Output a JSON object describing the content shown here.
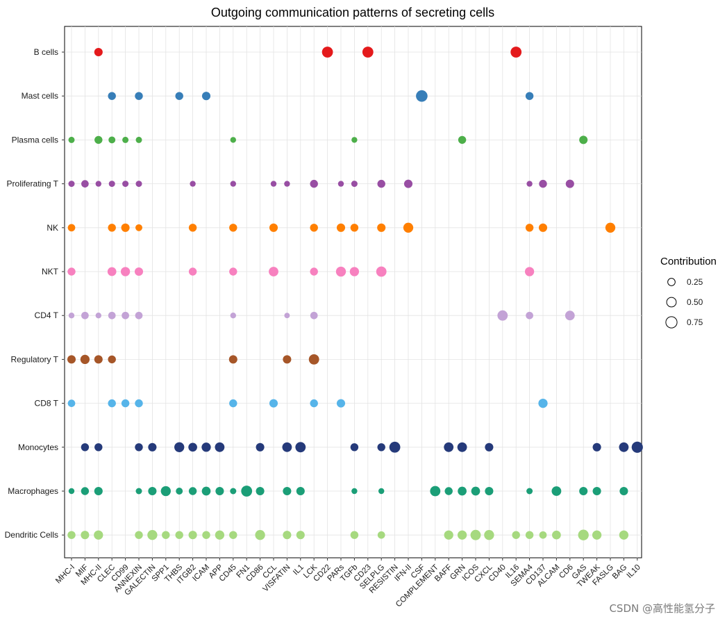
{
  "chart_data": {
    "type": "dot",
    "title": "Outgoing communication patterns of secreting cells",
    "xlabel": "",
    "ylabel": "",
    "x_categories": [
      "MHC-I",
      "MIF",
      "MHC-II",
      "CLEC",
      "CD99",
      "ANNEXIN",
      "GALECTIN",
      "SPP1",
      "THBS",
      "ITGB2",
      "ICAM",
      "APP",
      "CD45",
      "FN1",
      "CD86",
      "CCL",
      "VISFATIN",
      "IL1",
      "LCK",
      "CD22",
      "PARs",
      "TGFb",
      "CD23",
      "SELPLG",
      "RESISTIN",
      "IFN-II",
      "CSF",
      "COMPLEMENT",
      "BAFF",
      "GRN",
      "ICOS",
      "CXCL",
      "CD40",
      "IL16",
      "SEMA4",
      "CD137",
      "ALCAM",
      "CD6",
      "GAS",
      "TWEAK",
      "FASLG",
      "BAG",
      "IL10"
    ],
    "y_categories": [
      "B cells",
      "Mast cells",
      "Plasma cells",
      "Proliferating T",
      "NK",
      "NKT",
      "CD4 T",
      "Regulatory T",
      "CD8 T",
      "Monocytes",
      "Macrophages",
      "Dendritic Cells"
    ],
    "legend": {
      "title": "Contribution",
      "position": "right",
      "items": [
        {
          "label": "0.25",
          "value": 0.25
        },
        {
          "label": "0.50",
          "value": 0.5
        },
        {
          "label": "0.75",
          "value": 0.75
        }
      ]
    },
    "series": [
      {
        "name": "B cells",
        "color": "#E41A1C",
        "points": [
          {
            "x": "MHC-II",
            "contribution": 0.35
          },
          {
            "x": "CD22",
            "contribution": 0.7
          },
          {
            "x": "CD23",
            "contribution": 0.7
          },
          {
            "x": "IL16",
            "contribution": 0.7
          }
        ]
      },
      {
        "name": "Mast cells",
        "color": "#377EB8",
        "points": [
          {
            "x": "CLEC",
            "contribution": 0.3
          },
          {
            "x": "ANNEXIN",
            "contribution": 0.3
          },
          {
            "x": "THBS",
            "contribution": 0.3
          },
          {
            "x": "ICAM",
            "contribution": 0.35
          },
          {
            "x": "CSF",
            "contribution": 0.8
          },
          {
            "x": "SEMA4",
            "contribution": 0.3
          }
        ]
      },
      {
        "name": "Plasma cells",
        "color": "#4DAF4A",
        "points": [
          {
            "x": "MHC-I",
            "contribution": 0.15
          },
          {
            "x": "MHC-II",
            "contribution": 0.3
          },
          {
            "x": "CLEC",
            "contribution": 0.2
          },
          {
            "x": "CD99",
            "contribution": 0.15
          },
          {
            "x": "ANNEXIN",
            "contribution": 0.15
          },
          {
            "x": "CD45",
            "contribution": 0.12
          },
          {
            "x": "TGFb",
            "contribution": 0.12
          },
          {
            "x": "GRN",
            "contribution": 0.3
          },
          {
            "x": "GAS",
            "contribution": 0.35
          }
        ]
      },
      {
        "name": "Proliferating T",
        "color": "#984EA3",
        "points": [
          {
            "x": "MHC-I",
            "contribution": 0.15
          },
          {
            "x": "MIF",
            "contribution": 0.25
          },
          {
            "x": "MHC-II",
            "contribution": 0.12
          },
          {
            "x": "CLEC",
            "contribution": 0.15
          },
          {
            "x": "CD99",
            "contribution": 0.15
          },
          {
            "x": "ANNEXIN",
            "contribution": 0.15
          },
          {
            "x": "ITGB2",
            "contribution": 0.12
          },
          {
            "x": "CD45",
            "contribution": 0.12
          },
          {
            "x": "CCL",
            "contribution": 0.12
          },
          {
            "x": "VISFATIN",
            "contribution": 0.12
          },
          {
            "x": "LCK",
            "contribution": 0.3
          },
          {
            "x": "PARs",
            "contribution": 0.12
          },
          {
            "x": "TGFb",
            "contribution": 0.15
          },
          {
            "x": "SELPLG",
            "contribution": 0.3
          },
          {
            "x": "IFN-II",
            "contribution": 0.35
          },
          {
            "x": "SEMA4",
            "contribution": 0.12
          },
          {
            "x": "CD137",
            "contribution": 0.3
          },
          {
            "x": "CD6",
            "contribution": 0.35
          }
        ]
      },
      {
        "name": "NK",
        "color": "#FF7F00",
        "points": [
          {
            "x": "MHC-I",
            "contribution": 0.25
          },
          {
            "x": "CLEC",
            "contribution": 0.3
          },
          {
            "x": "CD99",
            "contribution": 0.35
          },
          {
            "x": "ANNEXIN",
            "contribution": 0.2
          },
          {
            "x": "ITGB2",
            "contribution": 0.3
          },
          {
            "x": "CD45",
            "contribution": 0.3
          },
          {
            "x": "CCL",
            "contribution": 0.35
          },
          {
            "x": "LCK",
            "contribution": 0.3
          },
          {
            "x": "PARs",
            "contribution": 0.35
          },
          {
            "x": "TGFb",
            "contribution": 0.3
          },
          {
            "x": "SELPLG",
            "contribution": 0.35
          },
          {
            "x": "IFN-II",
            "contribution": 0.55
          },
          {
            "x": "SEMA4",
            "contribution": 0.3
          },
          {
            "x": "CD137",
            "contribution": 0.35
          },
          {
            "x": "FASLG",
            "contribution": 0.55
          }
        ]
      },
      {
        "name": "NKT",
        "color": "#F781BF",
        "points": [
          {
            "x": "MHC-I",
            "contribution": 0.3
          },
          {
            "x": "CLEC",
            "contribution": 0.4
          },
          {
            "x": "CD99",
            "contribution": 0.45
          },
          {
            "x": "ANNEXIN",
            "contribution": 0.35
          },
          {
            "x": "ITGB2",
            "contribution": 0.3
          },
          {
            "x": "CD45",
            "contribution": 0.3
          },
          {
            "x": "CCL",
            "contribution": 0.5
          },
          {
            "x": "LCK",
            "contribution": 0.3
          },
          {
            "x": "PARs",
            "contribution": 0.55
          },
          {
            "x": "TGFb",
            "contribution": 0.45
          },
          {
            "x": "SELPLG",
            "contribution": 0.6
          },
          {
            "x": "SEMA4",
            "contribution": 0.45
          }
        ]
      },
      {
        "name": "CD4 T",
        "color": "#C3A3D6",
        "points": [
          {
            "x": "MHC-I",
            "contribution": 0.12
          },
          {
            "x": "MIF",
            "contribution": 0.25
          },
          {
            "x": "MHC-II",
            "contribution": 0.12
          },
          {
            "x": "CLEC",
            "contribution": 0.25
          },
          {
            "x": "CD99",
            "contribution": 0.25
          },
          {
            "x": "ANNEXIN",
            "contribution": 0.25
          },
          {
            "x": "CD45",
            "contribution": 0.12
          },
          {
            "x": "VISFATIN",
            "contribution": 0.1
          },
          {
            "x": "LCK",
            "contribution": 0.25
          },
          {
            "x": "CD40",
            "contribution": 0.6
          },
          {
            "x": "SEMA4",
            "contribution": 0.25
          },
          {
            "x": "CD6",
            "contribution": 0.5
          }
        ]
      },
      {
        "name": "Regulatory T",
        "color": "#A65628",
        "points": [
          {
            "x": "MHC-I",
            "contribution": 0.35
          },
          {
            "x": "MIF",
            "contribution": 0.45
          },
          {
            "x": "MHC-II",
            "contribution": 0.35
          },
          {
            "x": "CLEC",
            "contribution": 0.3
          },
          {
            "x": "CD45",
            "contribution": 0.35
          },
          {
            "x": "VISFATIN",
            "contribution": 0.35
          },
          {
            "x": "LCK",
            "contribution": 0.6
          }
        ]
      },
      {
        "name": "CD8 T",
        "color": "#56B4E9",
        "points": [
          {
            "x": "MHC-I",
            "contribution": 0.25
          },
          {
            "x": "CLEC",
            "contribution": 0.3
          },
          {
            "x": "CD99",
            "contribution": 0.3
          },
          {
            "x": "ANNEXIN",
            "contribution": 0.3
          },
          {
            "x": "CD45",
            "contribution": 0.3
          },
          {
            "x": "CCL",
            "contribution": 0.35
          },
          {
            "x": "LCK",
            "contribution": 0.3
          },
          {
            "x": "PARs",
            "contribution": 0.35
          },
          {
            "x": "CD137",
            "contribution": 0.45
          }
        ]
      },
      {
        "name": "Monocytes",
        "color": "#253A7A",
        "points": [
          {
            "x": "MIF",
            "contribution": 0.3
          },
          {
            "x": "MHC-II",
            "contribution": 0.3
          },
          {
            "x": "ANNEXIN",
            "contribution": 0.3
          },
          {
            "x": "GALECTIN",
            "contribution": 0.35
          },
          {
            "x": "THBS",
            "contribution": 0.55
          },
          {
            "x": "ITGB2",
            "contribution": 0.4
          },
          {
            "x": "ICAM",
            "contribution": 0.45
          },
          {
            "x": "APP",
            "contribution": 0.5
          },
          {
            "x": "CD86",
            "contribution": 0.35
          },
          {
            "x": "VISFATIN",
            "contribution": 0.5
          },
          {
            "x": "IL1",
            "contribution": 0.6
          },
          {
            "x": "TGFb",
            "contribution": 0.3
          },
          {
            "x": "SELPLG",
            "contribution": 0.3
          },
          {
            "x": "RESISTIN",
            "contribution": 0.7
          },
          {
            "x": "BAFF",
            "contribution": 0.5
          },
          {
            "x": "GRN",
            "contribution": 0.5
          },
          {
            "x": "CXCL",
            "contribution": 0.35
          },
          {
            "x": "TWEAK",
            "contribution": 0.35
          },
          {
            "x": "BAG",
            "contribution": 0.5
          },
          {
            "x": "IL10",
            "contribution": 0.75
          }
        ]
      },
      {
        "name": "Macrophages",
        "color": "#1B9E77",
        "points": [
          {
            "x": "MHC-I",
            "contribution": 0.12
          },
          {
            "x": "MIF",
            "contribution": 0.3
          },
          {
            "x": "MHC-II",
            "contribution": 0.35
          },
          {
            "x": "ANNEXIN",
            "contribution": 0.15
          },
          {
            "x": "GALECTIN",
            "contribution": 0.35
          },
          {
            "x": "SPP1",
            "contribution": 0.55
          },
          {
            "x": "THBS",
            "contribution": 0.2
          },
          {
            "x": "ITGB2",
            "contribution": 0.3
          },
          {
            "x": "ICAM",
            "contribution": 0.4
          },
          {
            "x": "APP",
            "contribution": 0.35
          },
          {
            "x": "CD45",
            "contribution": 0.15
          },
          {
            "x": "FN1",
            "contribution": 0.7
          },
          {
            "x": "CD86",
            "contribution": 0.35
          },
          {
            "x": "VISFATIN",
            "contribution": 0.35
          },
          {
            "x": "IL1",
            "contribution": 0.35
          },
          {
            "x": "TGFb",
            "contribution": 0.12
          },
          {
            "x": "SELPLG",
            "contribution": 0.12
          },
          {
            "x": "COMPLEMENT",
            "contribution": 0.6
          },
          {
            "x": "BAFF",
            "contribution": 0.3
          },
          {
            "x": "GRN",
            "contribution": 0.4
          },
          {
            "x": "ICOS",
            "contribution": 0.4
          },
          {
            "x": "CXCL",
            "contribution": 0.35
          },
          {
            "x": "SEMA4",
            "contribution": 0.15
          },
          {
            "x": "ALCAM",
            "contribution": 0.5
          },
          {
            "x": "GAS",
            "contribution": 0.35
          },
          {
            "x": "TWEAK",
            "contribution": 0.35
          },
          {
            "x": "BAG",
            "contribution": 0.35
          }
        ]
      },
      {
        "name": "Dendritic Cells",
        "color": "#A6D97F",
        "points": [
          {
            "x": "MHC-I",
            "contribution": 0.3
          },
          {
            "x": "MIF",
            "contribution": 0.35
          },
          {
            "x": "MHC-II",
            "contribution": 0.45
          },
          {
            "x": "ANNEXIN",
            "contribution": 0.3
          },
          {
            "x": "GALECTIN",
            "contribution": 0.55
          },
          {
            "x": "SPP1",
            "contribution": 0.3
          },
          {
            "x": "THBS",
            "contribution": 0.3
          },
          {
            "x": "ITGB2",
            "contribution": 0.35
          },
          {
            "x": "ICAM",
            "contribution": 0.3
          },
          {
            "x": "APP",
            "contribution": 0.45
          },
          {
            "x": "CD45",
            "contribution": 0.3
          },
          {
            "x": "CD86",
            "contribution": 0.55
          },
          {
            "x": "VISFATIN",
            "contribution": 0.35
          },
          {
            "x": "IL1",
            "contribution": 0.35
          },
          {
            "x": "TGFb",
            "contribution": 0.3
          },
          {
            "x": "SELPLG",
            "contribution": 0.25
          },
          {
            "x": "BAFF",
            "contribution": 0.45
          },
          {
            "x": "GRN",
            "contribution": 0.45
          },
          {
            "x": "ICOS",
            "contribution": 0.6
          },
          {
            "x": "CXCL",
            "contribution": 0.55
          },
          {
            "x": "IL16",
            "contribution": 0.3
          },
          {
            "x": "SEMA4",
            "contribution": 0.3
          },
          {
            "x": "CD137",
            "contribution": 0.25
          },
          {
            "x": "ALCAM",
            "contribution": 0.4
          },
          {
            "x": "GAS",
            "contribution": 0.65
          },
          {
            "x": "TWEAK",
            "contribution": 0.45
          },
          {
            "x": "BAG",
            "contribution": 0.45
          }
        ]
      }
    ]
  },
  "watermark": "CSDN @高性能氢分子"
}
